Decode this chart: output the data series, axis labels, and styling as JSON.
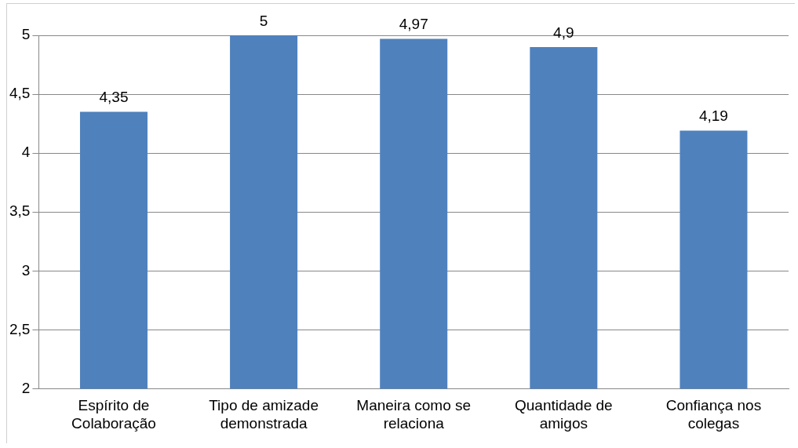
{
  "chart_data": {
    "type": "bar",
    "categories": [
      "Espírito de Colaboração",
      "Tipo de amizade demonstrada",
      "Maneira como se relaciona",
      "Quantidade de amigos",
      "Confiança nos colegas"
    ],
    "values": [
      4.35,
      5,
      4.97,
      4.9,
      4.19
    ],
    "value_labels": [
      "4,35",
      "5",
      "4,97",
      "4,9",
      "4,19"
    ],
    "color": "#4f81bd",
    "ylim": [
      2,
      5
    ],
    "yticks": [
      2,
      {
        "value": 2.5,
        "label": "2,5"
      },
      3,
      {
        "value": 3.5,
        "label": "3,5"
      },
      4,
      {
        "value": 4.5,
        "label": "4,5"
      },
      5
    ],
    "grid": "y",
    "legend": false
  }
}
